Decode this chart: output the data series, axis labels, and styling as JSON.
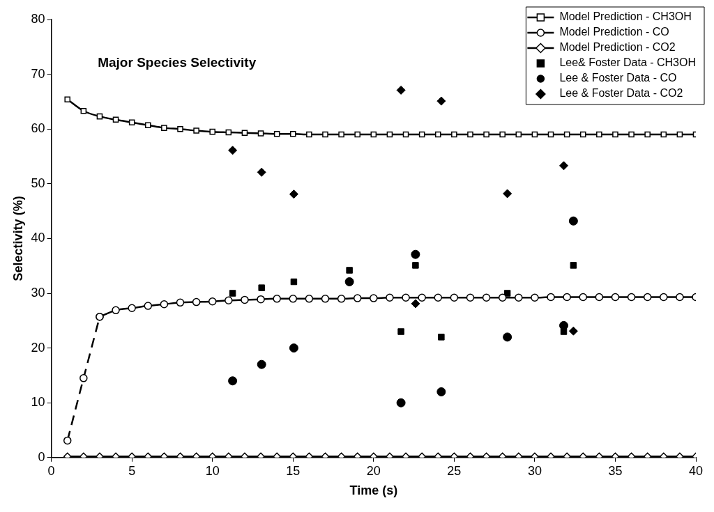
{
  "chart_data": {
    "type": "line",
    "title": "Major Species Selectivity",
    "xlabel": "Time (s)",
    "ylabel": "Selectivity (%)",
    "xlim": [
      0,
      40
    ],
    "xticks": [
      0,
      5,
      10,
      15,
      20,
      25,
      30,
      35,
      40
    ],
    "ylim": [
      0,
      80
    ],
    "yticks": [
      0,
      10,
      20,
      30,
      40,
      50,
      60,
      70,
      80
    ],
    "legend": "top right",
    "series": [
      {
        "name": "Model Prediction - CH3OH",
        "color": "#000000",
        "marker": "square",
        "line_style": "solid",
        "x": [
          1,
          2,
          3,
          4,
          5,
          6,
          7,
          8,
          9,
          10,
          11,
          12,
          13,
          14,
          15,
          16,
          17,
          18,
          19,
          20,
          21,
          22,
          23,
          24,
          25,
          26,
          27,
          28,
          29,
          30,
          31,
          32,
          33,
          34,
          35,
          36,
          37,
          38,
          39,
          40
        ],
        "values": [
          65.4,
          63.3,
          62.3,
          61.7,
          61.2,
          60.7,
          60.2,
          60.0,
          59.7,
          59.5,
          59.4,
          59.3,
          59.2,
          59.1,
          59.1,
          59.0,
          59.0,
          59.0,
          59.0,
          59.0,
          59.0,
          59.0,
          59.0,
          59.0,
          59.0,
          59.0,
          59.0,
          59.0,
          59.0,
          59.0,
          59.0,
          59.0,
          59.0,
          59.0,
          59.0,
          59.0,
          59.0,
          59.0,
          59.0,
          59.0
        ]
      },
      {
        "name": "Model Prediction - CO",
        "color": "#000000",
        "marker": "circle",
        "line_style": "solid",
        "x": [
          3,
          4,
          5,
          6,
          7,
          8,
          9,
          10,
          11,
          12,
          13,
          14,
          15,
          16,
          17,
          18,
          19,
          20,
          21,
          22,
          23,
          24,
          25,
          26,
          27,
          28,
          29,
          30,
          31,
          32,
          33,
          34,
          35,
          36,
          37,
          38,
          39,
          40
        ],
        "values": [
          25.7,
          26.9,
          27.3,
          27.7,
          28.0,
          28.3,
          28.4,
          28.5,
          28.7,
          28.8,
          28.9,
          29.0,
          29.0,
          29.0,
          29.0,
          29.0,
          29.1,
          29.1,
          29.2,
          29.2,
          29.2,
          29.2,
          29.2,
          29.2,
          29.2,
          29.2,
          29.2,
          29.2,
          29.3,
          29.3,
          29.3,
          29.3,
          29.3,
          29.3,
          29.3,
          29.3,
          29.3,
          29.3
        ]
      },
      {
        "name": "Model Prediction - CO2",
        "color": "#000000",
        "marker": "diamond",
        "line_style": "solid",
        "x": [
          1,
          2,
          3,
          4,
          5,
          6,
          7,
          8,
          9,
          10,
          11,
          12,
          13,
          14,
          15,
          16,
          17,
          18,
          19,
          20,
          21,
          22,
          23,
          24,
          25,
          26,
          27,
          28,
          29,
          30,
          31,
          32,
          33,
          34,
          35,
          36,
          37,
          38,
          39,
          40
        ],
        "values": [
          0.2,
          0.2,
          0.2,
          0.2,
          0.2,
          0.2,
          0.2,
          0.2,
          0.2,
          0.2,
          0.2,
          0.2,
          0.2,
          0.2,
          0.2,
          0.2,
          0.2,
          0.2,
          0.2,
          0.2,
          0.2,
          0.2,
          0.2,
          0.2,
          0.2,
          0.2,
          0.2,
          0.2,
          0.2,
          0.2,
          0.2,
          0.2,
          0.2,
          0.2,
          0.2,
          0.2,
          0.2,
          0.2,
          0.2,
          0.2
        ]
      },
      {
        "name": "Lee& Foster Data - CH3OH",
        "type": "scatter",
        "color": "#000000",
        "marker": "square",
        "x": [
          11.25,
          13.05,
          15.05,
          18.5,
          21.7,
          22.6,
          24.2,
          28.3,
          31.8,
          32.4
        ],
        "values": [
          30.0,
          31.0,
          32.1,
          34.2,
          23.0,
          35.1,
          22.0,
          30.0,
          23.0,
          35.1
        ]
      },
      {
        "name": "Lee & Foster Data - CO",
        "type": "scatter",
        "color": "#000000",
        "marker": "circle",
        "x": [
          11.25,
          13.05,
          15.05,
          18.5,
          21.7,
          22.6,
          24.2,
          28.3,
          31.8,
          32.4
        ],
        "values": [
          14.0,
          17.0,
          20.0,
          32.1,
          10.0,
          37.1,
          12.0,
          22.0,
          24.1,
          43.2
        ]
      },
      {
        "name": "Lee & Foster Data - CO2",
        "type": "scatter",
        "color": "#000000",
        "marker": "diamond",
        "x": [
          11.25,
          13.05,
          15.05,
          21.7,
          22.6,
          24.2,
          28.3,
          31.8,
          32.4
        ],
        "values": [
          56.1,
          52.1,
          48.1,
          67.1,
          28.1,
          65.1,
          48.2,
          53.3,
          23.1
        ]
      },
      {
        "color": "#000000",
        "marker": "circle",
        "line_style": "dashed",
        "x": [
          1,
          2,
          3
        ],
        "values": [
          3.1,
          14.5,
          25.7
        ]
      }
    ]
  }
}
